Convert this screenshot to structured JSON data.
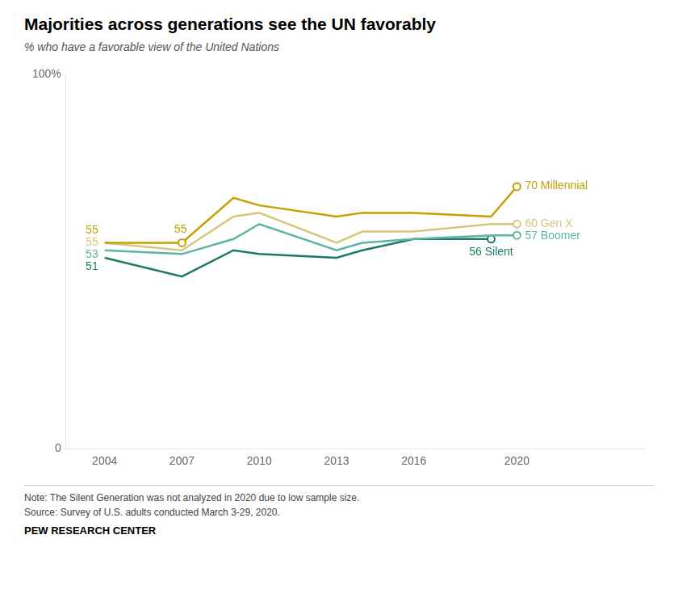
{
  "chart_data": {
    "type": "line",
    "title": "Majorities across generations see the UN favorably",
    "subtitle": "% who have a favorable view of the United Nations",
    "note": "Note: The Silent Generation was not analyzed in 2020 due to low sample size.",
    "source": "Source: Survey of U.S. adults conducted March 3-29, 2020.",
    "credit": "PEW RESEARCH CENTER",
    "x": [
      2004,
      2007,
      2009,
      2010,
      2013,
      2014,
      2016,
      2019,
      2020
    ],
    "series": [
      {
        "name": "Millennial",
        "color": "#C4A000",
        "values": [
          55,
          55,
          67,
          65,
          62,
          63,
          63,
          62,
          70
        ]
      },
      {
        "name": "Gen X",
        "color": "#D4C87A",
        "values": [
          55,
          53,
          62,
          63,
          55,
          58,
          58,
          60,
          60
        ]
      },
      {
        "name": "Boomer",
        "color": "#5BB5A2",
        "values": [
          53,
          52,
          56,
          60,
          53,
          55,
          56,
          57,
          57
        ]
      },
      {
        "name": "Silent",
        "color": "#1D7A6A",
        "values": [
          51,
          46,
          53,
          52,
          51,
          53,
          56,
          56,
          null
        ]
      }
    ],
    "annotations": [
      {
        "text": "55",
        "series": "Millennial",
        "x": 2004
      },
      {
        "text": "55",
        "series": "Gen X",
        "x": 2004
      },
      {
        "text": "53",
        "series": "Boomer",
        "x": 2004
      },
      {
        "text": "51",
        "series": "Silent",
        "x": 2004
      },
      {
        "text": "55",
        "series": "Millennial",
        "x": 2007
      },
      {
        "text": "70 Millennial",
        "series": "Millennial",
        "x": 2020
      },
      {
        "text": "60 Gen X",
        "series": "Gen X",
        "x": 2020
      },
      {
        "text": "57 Boomer",
        "series": "Boomer",
        "x": 2020
      },
      {
        "text": "56 Silent",
        "series": "Silent",
        "x": 2019
      }
    ],
    "xlim": [
      2002.5,
      2025
    ],
    "xticks": [
      2004,
      2007,
      2010,
      2013,
      2016,
      2020
    ],
    "ylim": [
      0,
      100
    ],
    "yticks": [
      0,
      {
        "value": 100,
        "label": "100%"
      }
    ],
    "grid": false
  }
}
